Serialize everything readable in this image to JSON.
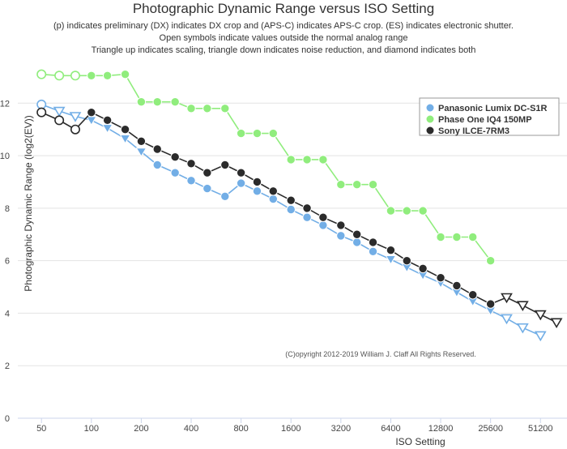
{
  "chart_data": {
    "type": "line",
    "title": "Photographic Dynamic Range versus ISO Setting",
    "subtitle": [
      "(p) indicates preliminary (DX) indicates DX crop and (APS-C) indicates APS-C crop. (ES) indicates electronic shutter.",
      "Open symbols indicate values outside the normal analog range",
      "Triangle up indicates scaling, triangle down indicates noise reduction, and diamond indicates both"
    ],
    "xlabel": "ISO Setting",
    "ylabel": "Photographic Dynamic Range (log2(EV))",
    "x_scale": "log2",
    "xlim": [
      36,
      74000
    ],
    "ylim": [
      0,
      13.8
    ],
    "x_ticks": [
      {
        "value": 50,
        "label": "50"
      },
      {
        "value": 100,
        "label": "100"
      },
      {
        "value": 200,
        "label": "200"
      },
      {
        "value": 400,
        "label": "400"
      },
      {
        "value": 800,
        "label": "800"
      },
      {
        "value": 1600,
        "label": "1600"
      },
      {
        "value": 3200,
        "label": "3200"
      },
      {
        "value": 6400,
        "label": "6400"
      },
      {
        "value": 12800,
        "label": "12800"
      },
      {
        "value": 25600,
        "label": "25600"
      },
      {
        "value": 51200,
        "label": "51200"
      }
    ],
    "y_ticks": [
      0,
      2,
      4,
      6,
      8,
      10,
      12
    ],
    "grid": true,
    "legend_position": "top-right",
    "credit": "(C)opyright 2012-2019 William J. Claff All Rights Reserved.",
    "series": [
      {
        "name": "Panasonic Lumix DC-S1R",
        "color": "#72aee6",
        "points": [
          {
            "x": 50,
            "y": 11.95,
            "m": "circle-open"
          },
          {
            "x": 64,
            "y": 11.7,
            "m": "tri-down-open"
          },
          {
            "x": 80,
            "y": 11.5,
            "m": "tri-down-open"
          },
          {
            "x": 100,
            "y": 11.35,
            "m": "tri-down"
          },
          {
            "x": 125,
            "y": 11.05,
            "m": "tri-down"
          },
          {
            "x": 160,
            "y": 10.65,
            "m": "tri-down"
          },
          {
            "x": 200,
            "y": 10.15,
            "m": "tri-down"
          },
          {
            "x": 250,
            "y": 9.65,
            "m": "circle"
          },
          {
            "x": 320,
            "y": 9.35,
            "m": "circle"
          },
          {
            "x": 400,
            "y": 9.05,
            "m": "circle"
          },
          {
            "x": 500,
            "y": 8.75,
            "m": "circle"
          },
          {
            "x": 640,
            "y": 8.45,
            "m": "circle"
          },
          {
            "x": 800,
            "y": 8.95,
            "m": "circle"
          },
          {
            "x": 1000,
            "y": 8.65,
            "m": "circle"
          },
          {
            "x": 1250,
            "y": 8.35,
            "m": "circle"
          },
          {
            "x": 1600,
            "y": 7.95,
            "m": "circle"
          },
          {
            "x": 2000,
            "y": 7.65,
            "m": "circle"
          },
          {
            "x": 2500,
            "y": 7.35,
            "m": "circle"
          },
          {
            "x": 3200,
            "y": 6.95,
            "m": "circle"
          },
          {
            "x": 4000,
            "y": 6.7,
            "m": "circle"
          },
          {
            "x": 5000,
            "y": 6.35,
            "m": "circle"
          },
          {
            "x": 6400,
            "y": 6.05,
            "m": "tri-down"
          },
          {
            "x": 8000,
            "y": 5.75,
            "m": "tri-down"
          },
          {
            "x": 10000,
            "y": 5.45,
            "m": "tri-down"
          },
          {
            "x": 12800,
            "y": 5.15,
            "m": "tri-down"
          },
          {
            "x": 16000,
            "y": 4.8,
            "m": "tri-down"
          },
          {
            "x": 20000,
            "y": 4.45,
            "m": "tri-down"
          },
          {
            "x": 25600,
            "y": 4.1,
            "m": "tri-down"
          },
          {
            "x": 32000,
            "y": 3.8,
            "m": "tri-down-open"
          },
          {
            "x": 40000,
            "y": 3.45,
            "m": "tri-down-open"
          },
          {
            "x": 51200,
            "y": 3.15,
            "m": "tri-down-open"
          }
        ]
      },
      {
        "name": "Phase One IQ4 150MP",
        "color": "#90ed7d",
        "points": [
          {
            "x": 50,
            "y": 13.1,
            "m": "circle-open"
          },
          {
            "x": 64,
            "y": 13.05,
            "m": "circle-open"
          },
          {
            "x": 80,
            "y": 13.05,
            "m": "circle-open"
          },
          {
            "x": 100,
            "y": 13.05,
            "m": "circle"
          },
          {
            "x": 125,
            "y": 13.05,
            "m": "circle"
          },
          {
            "x": 160,
            "y": 13.1,
            "m": "circle"
          },
          {
            "x": 200,
            "y": 12.05,
            "m": "circle"
          },
          {
            "x": 250,
            "y": 12.05,
            "m": "circle"
          },
          {
            "x": 320,
            "y": 12.05,
            "m": "circle"
          },
          {
            "x": 400,
            "y": 11.8,
            "m": "circle"
          },
          {
            "x": 500,
            "y": 11.8,
            "m": "circle"
          },
          {
            "x": 640,
            "y": 11.8,
            "m": "circle"
          },
          {
            "x": 800,
            "y": 10.85,
            "m": "circle"
          },
          {
            "x": 1000,
            "y": 10.85,
            "m": "circle"
          },
          {
            "x": 1250,
            "y": 10.85,
            "m": "circle"
          },
          {
            "x": 1600,
            "y": 9.85,
            "m": "circle"
          },
          {
            "x": 2000,
            "y": 9.85,
            "m": "circle"
          },
          {
            "x": 2500,
            "y": 9.85,
            "m": "circle"
          },
          {
            "x": 3200,
            "y": 8.9,
            "m": "circle"
          },
          {
            "x": 4000,
            "y": 8.9,
            "m": "circle"
          },
          {
            "x": 5000,
            "y": 8.9,
            "m": "circle"
          },
          {
            "x": 6400,
            "y": 7.9,
            "m": "circle"
          },
          {
            "x": 8000,
            "y": 7.9,
            "m": "circle"
          },
          {
            "x": 10000,
            "y": 7.9,
            "m": "circle"
          },
          {
            "x": 12800,
            "y": 6.9,
            "m": "circle"
          },
          {
            "x": 16000,
            "y": 6.9,
            "m": "circle"
          },
          {
            "x": 20000,
            "y": 6.9,
            "m": "circle"
          },
          {
            "x": 25600,
            "y": 6.0,
            "m": "circle"
          }
        ]
      },
      {
        "name": "Sony ILCE-7RM3",
        "color": "#2b2b2b",
        "points": [
          {
            "x": 50,
            "y": 11.65,
            "m": "circle-open"
          },
          {
            "x": 64,
            "y": 11.35,
            "m": "circle-open"
          },
          {
            "x": 80,
            "y": 11.0,
            "m": "circle-open"
          },
          {
            "x": 100,
            "y": 11.65,
            "m": "circle"
          },
          {
            "x": 125,
            "y": 11.35,
            "m": "circle"
          },
          {
            "x": 160,
            "y": 11.0,
            "m": "circle"
          },
          {
            "x": 200,
            "y": 10.55,
            "m": "circle"
          },
          {
            "x": 250,
            "y": 10.25,
            "m": "circle"
          },
          {
            "x": 320,
            "y": 9.95,
            "m": "circle"
          },
          {
            "x": 400,
            "y": 9.7,
            "m": "circle"
          },
          {
            "x": 500,
            "y": 9.35,
            "m": "circle"
          },
          {
            "x": 640,
            "y": 9.65,
            "m": "circle"
          },
          {
            "x": 800,
            "y": 9.35,
            "m": "circle"
          },
          {
            "x": 1000,
            "y": 9.0,
            "m": "circle"
          },
          {
            "x": 1250,
            "y": 8.65,
            "m": "circle"
          },
          {
            "x": 1600,
            "y": 8.3,
            "m": "circle"
          },
          {
            "x": 2000,
            "y": 8.0,
            "m": "circle"
          },
          {
            "x": 2500,
            "y": 7.65,
            "m": "circle"
          },
          {
            "x": 3200,
            "y": 7.35,
            "m": "circle"
          },
          {
            "x": 4000,
            "y": 7.0,
            "m": "circle"
          },
          {
            "x": 5000,
            "y": 6.7,
            "m": "circle"
          },
          {
            "x": 6400,
            "y": 6.4,
            "m": "circle"
          },
          {
            "x": 8000,
            "y": 6.0,
            "m": "circle"
          },
          {
            "x": 10000,
            "y": 5.7,
            "m": "circle"
          },
          {
            "x": 12800,
            "y": 5.35,
            "m": "circle"
          },
          {
            "x": 16000,
            "y": 5.05,
            "m": "circle"
          },
          {
            "x": 20000,
            "y": 4.7,
            "m": "circle"
          },
          {
            "x": 25600,
            "y": 4.35,
            "m": "circle"
          },
          {
            "x": 32000,
            "y": 4.6,
            "m": "tri-down-open"
          },
          {
            "x": 40000,
            "y": 4.3,
            "m": "tri-down-open"
          },
          {
            "x": 51200,
            "y": 3.95,
            "m": "tri-down-open"
          },
          {
            "x": 64000,
            "y": 3.65,
            "m": "tri-down-open"
          }
        ]
      }
    ]
  }
}
